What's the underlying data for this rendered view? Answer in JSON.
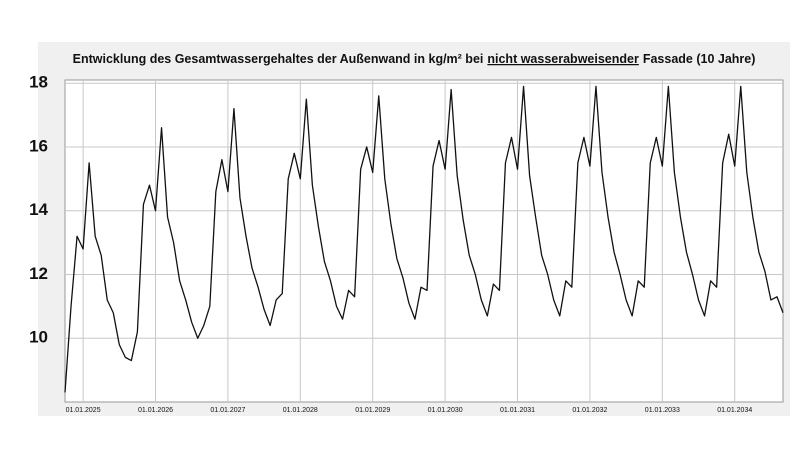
{
  "chart_data": {
    "type": "line",
    "title": {
      "before": "Entwicklung des Gesamtwassergehaltes der Außenwand in kg/m² bei",
      "underlined": "nicht wasserabweisender",
      "after": "Fassade (10 Jahre)"
    },
    "categories": [
      null,
      null,
      null,
      "01.01.2025",
      null,
      null,
      null,
      null,
      null,
      null,
      null,
      null,
      null,
      null,
      null,
      "01.01.2026",
      null,
      null,
      null,
      null,
      null,
      null,
      null,
      null,
      null,
      null,
      null,
      "01.01.2027",
      null,
      null,
      null,
      null,
      null,
      null,
      null,
      null,
      null,
      null,
      null,
      "01.01.2028",
      null,
      null,
      null,
      null,
      null,
      null,
      null,
      null,
      null,
      null,
      null,
      "01.01.2029",
      null,
      null,
      null,
      null,
      null,
      null,
      null,
      null,
      null,
      null,
      null,
      "01.01.2030",
      null,
      null,
      null,
      null,
      null,
      null,
      null,
      null,
      null,
      null,
      null,
      "01.01.2031",
      null,
      null,
      null,
      null,
      null,
      null,
      null,
      null,
      null,
      null,
      null,
      "01.01.2032",
      null,
      null,
      null,
      null,
      null,
      null,
      null,
      null,
      null,
      null,
      null,
      "01.01.2033",
      null,
      null,
      null,
      null,
      null,
      null,
      null,
      null,
      null,
      null,
      null,
      "01.01.2034",
      null,
      null,
      null,
      null,
      null,
      null,
      null,
      null
    ],
    "values": [
      8.3,
      11.0,
      13.2,
      12.8,
      15.5,
      13.2,
      12.6,
      11.2,
      10.8,
      9.8,
      9.4,
      9.3,
      10.2,
      14.2,
      14.8,
      14.0,
      16.6,
      13.8,
      13.0,
      11.8,
      11.2,
      10.5,
      10.0,
      10.4,
      11.0,
      14.6,
      15.6,
      14.6,
      17.2,
      14.4,
      13.2,
      12.2,
      11.6,
      10.9,
      10.4,
      11.2,
      11.4,
      15.0,
      15.8,
      15.0,
      17.5,
      14.8,
      13.5,
      12.4,
      11.8,
      11.0,
      10.6,
      11.5,
      11.3,
      15.3,
      16.0,
      15.2,
      17.6,
      15.0,
      13.6,
      12.5,
      11.9,
      11.1,
      10.6,
      11.6,
      11.5,
      15.4,
      16.2,
      15.3,
      17.8,
      15.1,
      13.7,
      12.6,
      12.0,
      11.2,
      10.7,
      11.7,
      11.5,
      15.5,
      16.3,
      15.3,
      17.9,
      15.1,
      13.8,
      12.6,
      12.0,
      11.2,
      10.7,
      11.8,
      11.6,
      15.5,
      16.3,
      15.4,
      17.9,
      15.2,
      13.8,
      12.7,
      12.0,
      11.2,
      10.7,
      11.8,
      11.6,
      15.5,
      16.3,
      15.4,
      17.9,
      15.2,
      13.8,
      12.7,
      12.0,
      11.2,
      10.7,
      11.8,
      11.6,
      15.5,
      16.4,
      15.4,
      17.9,
      15.2,
      13.8,
      12.7,
      12.1,
      11.2,
      11.3,
      10.8
    ],
    "color": "#111111",
    "ylim": [
      8,
      18.1
    ],
    "yticks": [
      10,
      12,
      14,
      16,
      18
    ],
    "grid": true
  }
}
